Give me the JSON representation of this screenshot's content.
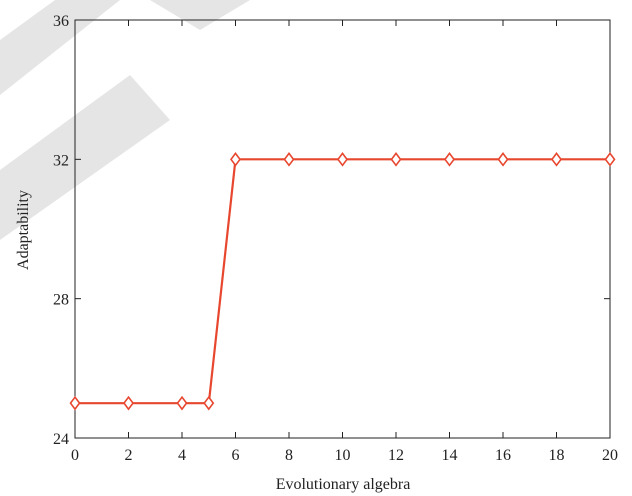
{
  "chart_data": {
    "type": "line",
    "title": "",
    "xlabel": "Evolutionary algebra",
    "ylabel": "Adaptability",
    "xlim": [
      0,
      20
    ],
    "ylim": [
      24,
      36
    ],
    "x_ticks": [
      "0",
      "2",
      "4",
      "6",
      "8",
      "10",
      "12",
      "14",
      "16",
      "18",
      "20"
    ],
    "y_ticks": [
      "24",
      "28",
      "32",
      "36"
    ],
    "grid": false,
    "legend": "none",
    "series": [
      {
        "x": [
          0,
          2,
          4,
          5,
          6,
          8,
          10,
          12,
          14,
          16,
          18,
          20
        ],
        "values": [
          25,
          25,
          25,
          25,
          32,
          32,
          32,
          32,
          32,
          32,
          32,
          32
        ],
        "color": "#e8472f",
        "marker": "diamond-open"
      }
    ]
  }
}
